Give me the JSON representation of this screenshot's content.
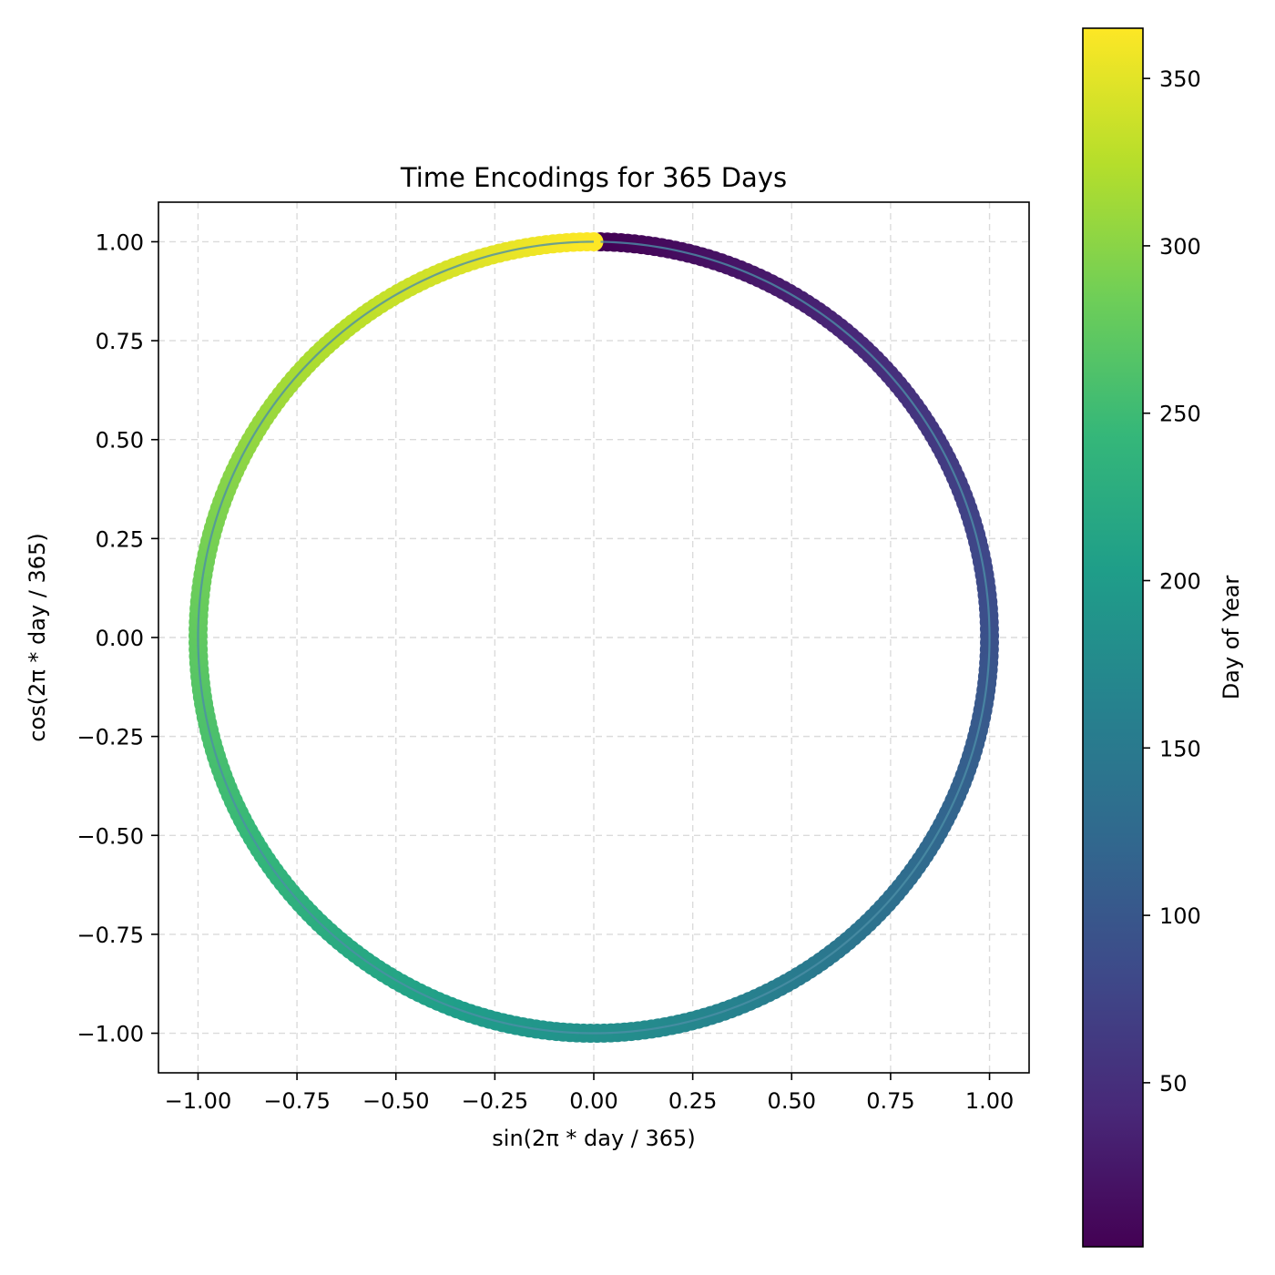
{
  "chart_data": {
    "type": "scatter",
    "title": "Time Encodings for 365 Days",
    "xlabel": "sin(2π * day / 365)",
    "ylabel": "cos(2π * day / 365)",
    "xlim": [
      -1.1,
      1.1
    ],
    "ylim": [
      -1.1,
      1.1
    ],
    "xticks": [
      -1.0,
      -0.75,
      -0.5,
      -0.25,
      0.0,
      0.25,
      0.5,
      0.75,
      1.0
    ],
    "xtick_labels": [
      "−1.00",
      "−0.75",
      "−0.50",
      "−0.25",
      "0.00",
      "0.25",
      "0.50",
      "0.75",
      "1.00"
    ],
    "yticks": [
      1.0,
      0.75,
      0.5,
      0.25,
      0.0,
      -0.25,
      -0.5,
      -0.75,
      -1.0
    ],
    "ytick_labels": [
      "1.00",
      "0.75",
      "0.50",
      "0.25",
      "0.00",
      "−0.25",
      "−0.50",
      "−0.75",
      "−1.00"
    ],
    "grid": true,
    "series": [
      {
        "kind": "points",
        "x_formula": "sin(2π * day / 365)",
        "y_formula": "cos(2π * day / 365)",
        "day_start": 1,
        "day_end": 365,
        "colored_by": "day",
        "colormap": "viridis"
      },
      {
        "kind": "line",
        "x_formula": "sin(2π * day / 365)",
        "y_formula": "cos(2π * day / 365)",
        "day_start": 1,
        "day_end": 365,
        "color": "#4c8ea6"
      }
    ],
    "colorbar": {
      "label": "Day of Year",
      "range": [
        1,
        365
      ],
      "ticks": [
        50,
        100,
        150,
        200,
        250,
        300,
        350
      ],
      "tick_labels": [
        "50",
        "100",
        "150",
        "200",
        "250",
        "300",
        "350"
      ]
    }
  },
  "colors": {
    "viridis": [
      "#440154",
      "#482878",
      "#3e4989",
      "#31688e",
      "#26828e",
      "#1f9e89",
      "#35b779",
      "#6ece58",
      "#b5de2b",
      "#fde725"
    ],
    "line": "#4c8ea6",
    "grid": "#cccccc",
    "frame": "#000000"
  }
}
